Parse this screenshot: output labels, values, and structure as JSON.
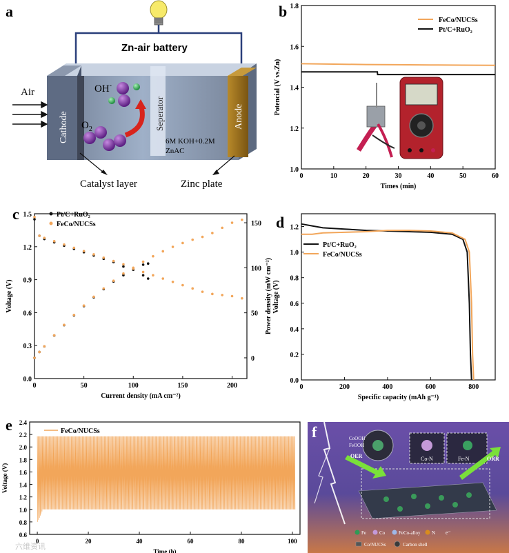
{
  "panels": {
    "a": {
      "letter": "a",
      "title": "Zn-air battery",
      "air": "Air",
      "cathode": "Cathode",
      "anode": "Anode",
      "separator": "Seperator",
      "oh": "OH",
      "oh_sup": "-",
      "o2": "O",
      "o2_sub": "2",
      "electrolyte_1": "6M KOH+0.2M",
      "electrolyte_2": "ZnAC",
      "catalyst_layer": "Catalyst layer",
      "zinc_plate": "Zinc plate"
    },
    "f": {
      "letter": "f",
      "labels": [
        "OER",
        "ORR",
        "Co-N",
        "Fe-N",
        "CoOOH",
        "FeOOH"
      ],
      "legend": [
        "Fe",
        "Co",
        "FeCo-alloy",
        "N",
        "e⁻",
        "Co/NUCSs",
        "Carbon shell"
      ]
    }
  },
  "chart_data": [
    {
      "id": "b",
      "letter": "b",
      "type": "line",
      "xlabel": "Times (min)",
      "ylabel": "Potencial (V vs.Zn)",
      "xlim": [
        0,
        60
      ],
      "ylim": [
        1.0,
        1.8
      ],
      "xticks": [
        "0",
        "10",
        "20",
        "30",
        "40",
        "50",
        "60"
      ],
      "yticks": [
        "1.0",
        "1.2",
        "1.4",
        "1.6",
        "1.8"
      ],
      "series": [
        {
          "name": "FeCo/NUCSs",
          "color": "#F2A65A",
          "x": [
            0,
            10,
            20,
            30,
            40,
            50,
            60
          ],
          "y": [
            1.515,
            1.513,
            1.511,
            1.51,
            1.509,
            1.508,
            1.507
          ]
        },
        {
          "name": "Pt/C+RuO₂",
          "color": "#111111",
          "x": [
            0,
            23.5,
            23.6,
            60
          ],
          "y": [
            1.475,
            1.475,
            1.462,
            1.462
          ]
        }
      ],
      "legend": "top-right",
      "inset": "photo"
    },
    {
      "id": "c",
      "letter": "c",
      "type": "scatter",
      "xlabel": "Current density (mA cm⁻²)",
      "ylabel": "Voltage (V)",
      "ylabel_right": "Power density (mW cm⁻²)",
      "xlim": [
        0,
        215
      ],
      "ylim": [
        0.0,
        1.5
      ],
      "ylim_right": [
        -23,
        160
      ],
      "xticks": [
        "0",
        "50",
        "100",
        "150",
        "200"
      ],
      "yticks": [
        "0.0",
        "0.3",
        "0.6",
        "0.9",
        "1.2",
        "1.5"
      ],
      "yticks_right": [
        "0",
        "50",
        "100",
        "150"
      ],
      "series": [
        {
          "name": "Pt/C+RuO₂",
          "color": "#111111",
          "x": [
            0,
            5,
            10,
            20,
            30,
            40,
            50,
            60,
            70,
            80,
            90,
            100,
            110,
            115
          ],
          "voltage": [
            1.45,
            1.3,
            1.27,
            1.24,
            1.21,
            1.18,
            1.15,
            1.12,
            1.09,
            1.06,
            1.02,
            0.99,
            0.94,
            0.91
          ],
          "power": [
            0,
            6.5,
            12.7,
            24.8,
            36.3,
            47.2,
            57.5,
            67.2,
            76.3,
            84.8,
            91.8,
            99,
            103.4,
            104.7
          ]
        },
        {
          "name": "FeCo/NUCSs",
          "color": "#F2A65A",
          "x": [
            0,
            5,
            10,
            20,
            30,
            40,
            50,
            60,
            70,
            80,
            90,
            100,
            110,
            120,
            130,
            140,
            150,
            160,
            170,
            180,
            190,
            200,
            210
          ],
          "voltage": [
            1.47,
            1.3,
            1.28,
            1.25,
            1.22,
            1.19,
            1.16,
            1.13,
            1.1,
            1.07,
            1.04,
            1.0,
            0.97,
            0.94,
            0.91,
            0.88,
            0.85,
            0.82,
            0.79,
            0.77,
            0.76,
            0.75,
            0.73
          ],
          "power": [
            0,
            6.5,
            12.8,
            25,
            36.6,
            47.6,
            58,
            67.8,
            77,
            85.6,
            93.6,
            100,
            106.7,
            112.8,
            118.3,
            123.2,
            127.5,
            131.2,
            134.3,
            138.6,
            144.4,
            150,
            153.3
          ]
        }
      ],
      "legend": "top-left"
    },
    {
      "id": "d",
      "letter": "d",
      "type": "line",
      "xlabel": "Specific capacity (mAh g⁻¹)",
      "ylabel": "Voltage (V)",
      "xlim": [
        0,
        900
      ],
      "ylim": [
        0.0,
        1.3
      ],
      "xticks": [
        "0",
        "200",
        "400",
        "600",
        "800"
      ],
      "yticks": [
        "0.0",
        "0.2",
        "0.4",
        "0.6",
        "0.8",
        "1.0",
        "1.2"
      ],
      "series": [
        {
          "name": "Pt/C+RuO₂",
          "color": "#111111",
          "x": [
            0,
            50,
            100,
            200,
            300,
            400,
            500,
            600,
            700,
            750,
            770,
            780,
            785,
            790
          ],
          "y": [
            1.22,
            1.205,
            1.19,
            1.18,
            1.17,
            1.165,
            1.16,
            1.155,
            1.14,
            1.1,
            1.0,
            0.6,
            0.2,
            0.0
          ]
        },
        {
          "name": "FeCo/NUCSs",
          "color": "#F2A65A",
          "x": [
            0,
            50,
            100,
            200,
            300,
            400,
            500,
            600,
            700,
            760,
            780,
            790,
            795,
            800
          ],
          "y": [
            1.14,
            1.14,
            1.15,
            1.155,
            1.16,
            1.17,
            1.17,
            1.165,
            1.15,
            1.1,
            1.0,
            0.6,
            0.2,
            0.0
          ]
        }
      ],
      "legend": "top-left"
    },
    {
      "id": "e",
      "letter": "e",
      "type": "line",
      "xlabel": "Time (h)",
      "ylabel": "Voltage (V)",
      "xlim": [
        -3,
        103
      ],
      "ylim": [
        0.6,
        2.4
      ],
      "xticks": [
        "0",
        "20",
        "40",
        "60",
        "80",
        "100"
      ],
      "yticks": [
        "0.6",
        "0.8",
        "1.0",
        "1.2",
        "1.4",
        "1.6",
        "1.8",
        "2.0",
        "2.2",
        "2.4"
      ],
      "series": [
        {
          "name": "FeCo/NUCSs",
          "color": "#F2A65A",
          "cycle_period_h": 0.333,
          "x_range": [
            0,
            101
          ],
          "charge_y": 2.17,
          "discharge_y": 1.0,
          "initial_discharge_y": 0.8
        }
      ],
      "legend": "top-left"
    }
  ],
  "watermark": "六维资讯"
}
